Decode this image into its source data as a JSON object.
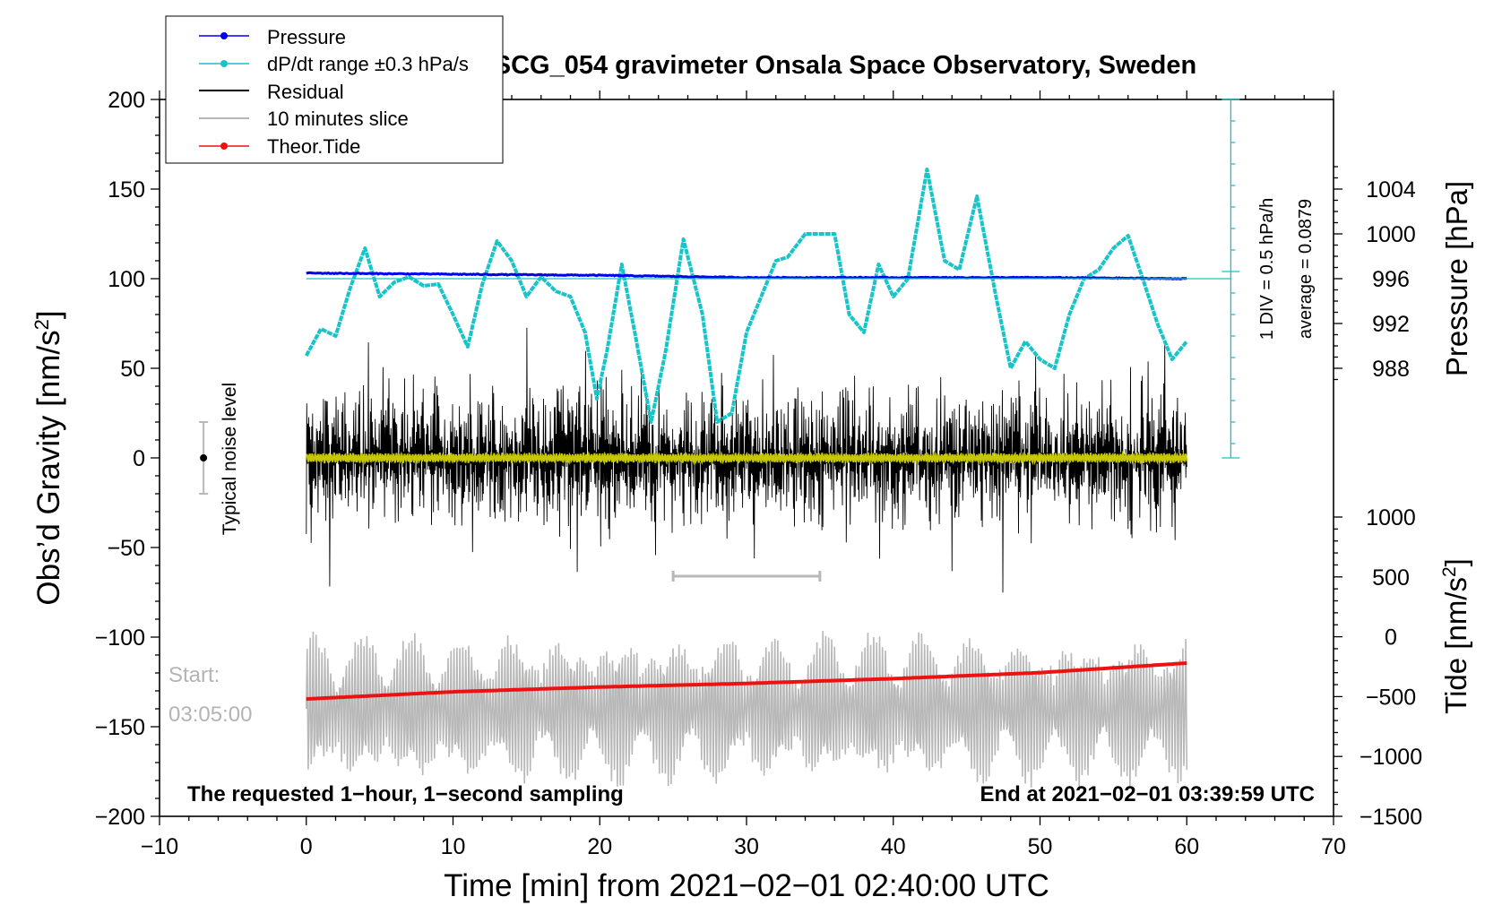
{
  "chart_data": {
    "type": "line",
    "title": "SCG_054 gravimeter Onsala Space Observatory, Sweden",
    "xlabel": "Time [min] from 2021−02−01 02:40:00 UTC",
    "ylabel_left": "Obs’d Gravity [nm/s",
    "ylabel_left_sup": "2",
    "ylabel_left_close": "]",
    "ylabel_pressure": "Pressure [hPa]",
    "ylabel_tide": "Tide [nm/s",
    "ylabel_tide_sup": "2",
    "ylabel_tide_close": "]",
    "xlim": [
      -10,
      70
    ],
    "ylim_left": [
      -200,
      200
    ],
    "x_ticks": [
      "−10",
      "0",
      "10",
      "20",
      "30",
      "40",
      "50",
      "60",
      "70"
    ],
    "x_tick_values": [
      -10,
      0,
      10,
      20,
      30,
      40,
      50,
      60,
      70
    ],
    "y_left_ticks": [
      "200",
      "150",
      "100",
      "50",
      "0",
      "−50",
      "−100",
      "−150",
      "−200"
    ],
    "y_left_tick_values": [
      200,
      150,
      100,
      50,
      0,
      -50,
      -100,
      -150,
      -200
    ],
    "pressure_axis": {
      "ticks": [
        "1004",
        "1000",
        "996",
        "992",
        "988"
      ],
      "tick_values": [
        1004,
        1000,
        996,
        992,
        988
      ],
      "map_low": [
        988,
        50
      ],
      "map_high": [
        1004,
        150
      ]
    },
    "tide_axis": {
      "ticks": [
        "1000",
        "500",
        "0",
        "−500",
        "−1000",
        "−1500"
      ],
      "tick_values": [
        1000,
        500,
        0,
        -500,
        -1000,
        -1500
      ],
      "map_low": [
        -1500,
        -200
      ],
      "map_high": [
        1000,
        -33
      ]
    },
    "legend": {
      "position": "top-left",
      "entries": [
        {
          "label": "Pressure",
          "color": "#0000ee",
          "style": "line-dot"
        },
        {
          "label": "dP/dt range ±0.3 hPa/s",
          "color": "#19c4c8",
          "style": "line-dot"
        },
        {
          "label": "Residual",
          "color": "#000000",
          "style": "line"
        },
        {
          "label": "10 minutes slice",
          "color": "#b8b8b8",
          "style": "line"
        },
        {
          "label": "Theor.Tide",
          "color": "#ee1111",
          "style": "line-dot"
        }
      ]
    },
    "series": [
      {
        "name": "Pressure",
        "axis": "pressure",
        "color": "#0000ee",
        "x": [
          0,
          10,
          20,
          30,
          40,
          50,
          60
        ],
        "values": [
          996.5,
          996.4,
          996.3,
          996.1,
          996.1,
          996.1,
          996.0
        ]
      },
      {
        "name": "dP/dt range ±0.3 hPa/s",
        "axis": "left",
        "color": "#19c4c8",
        "x": [
          0,
          1,
          2,
          3,
          4,
          5,
          6,
          7,
          8,
          9,
          10,
          11,
          12,
          13,
          14,
          15,
          16,
          17,
          18,
          19,
          19.8,
          20.5,
          21.5,
          22.5,
          23.5,
          24.5,
          25.7,
          27,
          28,
          29,
          30,
          31,
          32,
          32.8,
          34,
          35,
          36,
          37,
          38,
          39,
          40,
          41,
          42.3,
          43.5,
          44.5,
          45.7,
          47,
          48,
          49,
          50,
          51,
          52,
          53,
          54,
          55,
          56,
          57,
          58,
          59,
          60
        ],
        "values": [
          57,
          72,
          68,
          95,
          117,
          90,
          98,
          101,
          96,
          97,
          80,
          62,
          97,
          121,
          110,
          90,
          101,
          93,
          90,
          70,
          33,
          60,
          108,
          65,
          20,
          60,
          122,
          80,
          20,
          25,
          70,
          90,
          110,
          112,
          125,
          125,
          125,
          80,
          70,
          108,
          90,
          100,
          161,
          110,
          105,
          146,
          90,
          50,
          65,
          55,
          50,
          80,
          100,
          105,
          117,
          124,
          100,
          75,
          55,
          65
        ]
      },
      {
        "name": "Residual",
        "axis": "left",
        "color": "#000000",
        "x_range": [
          0,
          60
        ],
        "envelope": 35
      },
      {
        "name": "Yellow filtered",
        "axis": "left",
        "color": "#c8c800",
        "x_range": [
          0,
          60
        ],
        "envelope": 3
      },
      {
        "name": "10 minutes slice",
        "axis": "left",
        "color": "#b8b8b8",
        "x_range": [
          0,
          60
        ],
        "center": -140,
        "envelope": 35
      },
      {
        "name": "Theor.Tide",
        "axis": "tide",
        "color": "#ee1111",
        "x": [
          0,
          10,
          20,
          30,
          40,
          50,
          60
        ],
        "values": [
          -520,
          -460,
          -420,
          -390,
          -350,
          -300,
          -220
        ]
      }
    ],
    "slice_bar": {
      "x": [
        25,
        35
      ],
      "y": -66
    },
    "pressure_div_ticks": [
      200,
      188,
      176,
      164,
      152,
      140,
      128,
      116,
      104,
      92,
      80,
      68,
      56,
      44,
      32,
      20,
      8,
      0
    ],
    "annotations": {
      "noise_label": "Typical noise level",
      "noise_bar": {
        "x": -7,
        "y": 0,
        "half_range": 20
      },
      "start_label": "Start:",
      "start_time": "03:05:00",
      "div_text": "1 DIV = 0.5 hPa/h",
      "average_text": "average = 0.0879",
      "footer_left": "The requested 1−hour, 1−second sampling",
      "footer_right": "End at 2021−02−01 03:39:59 UTC"
    }
  }
}
